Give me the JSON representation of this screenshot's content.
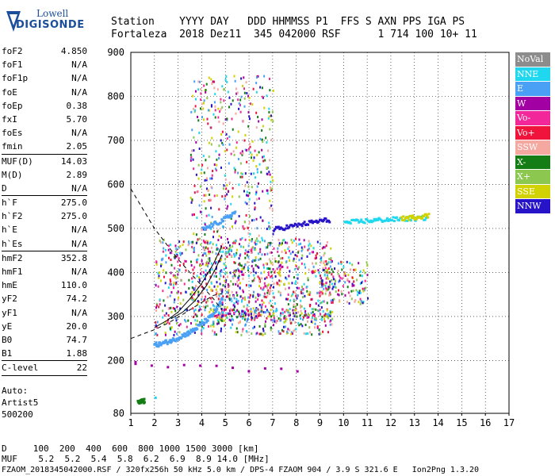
{
  "logo": {
    "line1": "Lowell",
    "line2": "DIGISONDE"
  },
  "header": {
    "row1": "Station    YYYY DAY   DDD HHMMSS P1  FFS S AXN PPS IGA PS",
    "row2": "Fortaleza  2018 Dez11  345 042000 RSF      1 714 100 10+ 11"
  },
  "params": [
    {
      "k": "foF2",
      "v": "4.850"
    },
    {
      "k": "foF1",
      "v": "N/A"
    },
    {
      "k": "foF1p",
      "v": "N/A"
    },
    {
      "k": "foE",
      "v": "N/A"
    },
    {
      "k": "foEp",
      "v": "0.38"
    },
    {
      "k": "fxI",
      "v": "5.70"
    },
    {
      "k": "foEs",
      "v": "N/A"
    },
    {
      "k": "fmin",
      "v": "2.05",
      "sep_after": true
    },
    {
      "k": "MUF(D)",
      "v": "14.03"
    },
    {
      "k": "M(D)",
      "v": "2.89"
    },
    {
      "k": "D",
      "v": "N/A",
      "sep_after": true
    },
    {
      "k": "h`F",
      "v": "275.0"
    },
    {
      "k": "h`F2",
      "v": "275.0"
    },
    {
      "k": "h`E",
      "v": "N/A"
    },
    {
      "k": "h`Es",
      "v": "N/A",
      "sep_after": true
    },
    {
      "k": "hmF2",
      "v": "352.8"
    },
    {
      "k": "hmF1",
      "v": "N/A"
    },
    {
      "k": "hmE",
      "v": "110.0"
    },
    {
      "k": "yF2",
      "v": "74.2"
    },
    {
      "k": "yF1",
      "v": "N/A"
    },
    {
      "k": "yE",
      "v": "20.0"
    },
    {
      "k": "B0",
      "v": "74.7"
    },
    {
      "k": "B1",
      "v": "1.88",
      "sep_after": true
    },
    {
      "k": "C-level",
      "v": "22",
      "sep_after": true
    }
  ],
  "auto": [
    "Auto:",
    "Artist5",
    "500200"
  ],
  "footer": {
    "row1": "D     100  200  400  600  800 1000 1500 3000 [km]",
    "row2": "MUF    5.2  5.2  5.4  5.8  6.2  6.9  8.9 14.0 [MHz]",
    "row3": "FZAOM_2018345042000.RSF / 320fx256h 50 kHz 5.0 km / DPS-4 FZAOM 904 / 3.9 S 321.6 E   Ion2Png 1.3.20"
  },
  "chart_data": {
    "type": "scatter",
    "title": "",
    "xlabel": "",
    "ylabel": "",
    "xlim": [
      1,
      17
    ],
    "ylim": [
      80,
      900
    ],
    "x_ticks": [
      1,
      2,
      3,
      4,
      5,
      6,
      7,
      8,
      9,
      10,
      11,
      12,
      13,
      14,
      15,
      16,
      17
    ],
    "y_ticks": [
      80,
      200,
      300,
      400,
      500,
      600,
      700,
      800,
      900
    ],
    "grid": "dotted",
    "legend": [
      {
        "name": "NoVal",
        "color": "#8c8c8c"
      },
      {
        "name": "NNE",
        "color": "#1fd8f0"
      },
      {
        "name": "E",
        "color": "#4aa0f5"
      },
      {
        "name": "W",
        "color": "#a200a2"
      },
      {
        "name": "Vo-",
        "color": "#f2289a"
      },
      {
        "name": "Vo+",
        "color": "#f0143c"
      },
      {
        "name": "SSW",
        "color": "#f5a8a0"
      },
      {
        "name": "X-",
        "color": "#157d15"
      },
      {
        "name": "X+",
        "color": "#8cc850"
      },
      {
        "name": "SSE",
        "color": "#d2d200"
      },
      {
        "name": "NNW",
        "color": "#2814c8"
      }
    ],
    "legend_position": "right",
    "traces": [
      {
        "name": "O-trace F2 (E)",
        "color": "#4aa0f5",
        "points": [
          [
            1.95,
            238
          ],
          [
            2.2,
            240
          ],
          [
            2.5,
            245
          ],
          [
            2.8,
            250
          ],
          [
            3.1,
            258
          ],
          [
            3.4,
            265
          ],
          [
            3.7,
            275
          ],
          [
            4.0,
            288
          ],
          [
            4.3,
            300
          ],
          [
            4.6,
            320
          ],
          [
            4.85,
            345
          ]
        ]
      },
      {
        "name": "X-trace F2 (E)",
        "color": "#4aa0f5",
        "points": [
          [
            4.0,
            500
          ],
          [
            4.4,
            510
          ],
          [
            4.8,
            520
          ],
          [
            5.1,
            530
          ],
          [
            5.4,
            540
          ]
        ]
      },
      {
        "name": "NNW high",
        "color": "#2814c8",
        "points": [
          [
            7.0,
            500
          ],
          [
            7.5,
            505
          ],
          [
            8.0,
            510
          ],
          [
            8.5,
            515
          ],
          [
            9.0,
            520
          ],
          [
            9.4,
            522
          ]
        ]
      },
      {
        "name": "NNE far",
        "color": "#1fd8f0",
        "points": [
          [
            10.0,
            515
          ],
          [
            10.5,
            518
          ],
          [
            11.0,
            520
          ],
          [
            11.5,
            522
          ],
          [
            12.0,
            523
          ],
          [
            12.5,
            524
          ],
          [
            13.0,
            525
          ],
          [
            13.5,
            527
          ]
        ]
      },
      {
        "name": "SSE far",
        "color": "#d2d200",
        "points": [
          [
            12.4,
            525
          ],
          [
            12.8,
            527
          ],
          [
            13.2,
            530
          ],
          [
            13.6,
            532
          ]
        ]
      },
      {
        "name": "low X-",
        "color": "#157d15",
        "points": [
          [
            1.25,
            110
          ],
          [
            1.4,
            110
          ],
          [
            1.55,
            111
          ]
        ]
      },
      {
        "name": "low NNE",
        "color": "#1fd8f0",
        "points": [
          [
            2.0,
            118
          ]
        ]
      },
      {
        "name": "low W",
        "color": "#a200a2",
        "points": [
          [
            1.15,
            195
          ],
          [
            8.0,
            178
          ]
        ]
      }
    ],
    "model_curves": [
      {
        "name": "MUF dashed",
        "style": "dashed",
        "points": [
          [
            1.0,
            590
          ],
          [
            1.5,
            545
          ],
          [
            2.0,
            500
          ],
          [
            2.5,
            465
          ],
          [
            3.0,
            430
          ],
          [
            3.5,
            400
          ],
          [
            4.0,
            370
          ],
          [
            4.5,
            340
          ],
          [
            4.85,
            315
          ]
        ]
      },
      {
        "name": "profile dashed",
        "style": "dashed",
        "points": [
          [
            1.0,
            250
          ],
          [
            1.5,
            260
          ],
          [
            2.0,
            270
          ],
          [
            2.5,
            283
          ],
          [
            3.0,
            298
          ],
          [
            3.5,
            315
          ],
          [
            4.0,
            332
          ],
          [
            4.5,
            348
          ],
          [
            4.85,
            352
          ]
        ]
      },
      {
        "name": "O-trace fit",
        "style": "solid",
        "points": [
          [
            2.0,
            275
          ],
          [
            2.5,
            290
          ],
          [
            3.0,
            310
          ],
          [
            3.5,
            340
          ],
          [
            4.0,
            375
          ],
          [
            4.5,
            420
          ],
          [
            4.85,
            460
          ]
        ]
      },
      {
        "name": "X-trace fit",
        "style": "solid",
        "points": [
          [
            2.7,
            295
          ],
          [
            3.2,
            310
          ],
          [
            3.7,
            335
          ],
          [
            4.2,
            370
          ],
          [
            4.6,
            410
          ],
          [
            4.85,
            440
          ]
        ]
      }
    ],
    "scatter_regions": [
      {
        "name": "spread F dense",
        "xr": [
          2.0,
          9.5
        ],
        "yr": [
          260,
          480
        ],
        "n": 900
      },
      {
        "name": "spread F tall",
        "xr": [
          3.5,
          7.0
        ],
        "yr": [
          300,
          850
        ],
        "n": 650
      },
      {
        "name": "near far",
        "xr": [
          9.0,
          11.0
        ],
        "yr": [
          330,
          430
        ],
        "n": 150
      },
      {
        "name": "pink band",
        "xr": [
          4.5,
          9.5
        ],
        "yr": [
          290,
          320
        ],
        "n": 180
      }
    ]
  }
}
